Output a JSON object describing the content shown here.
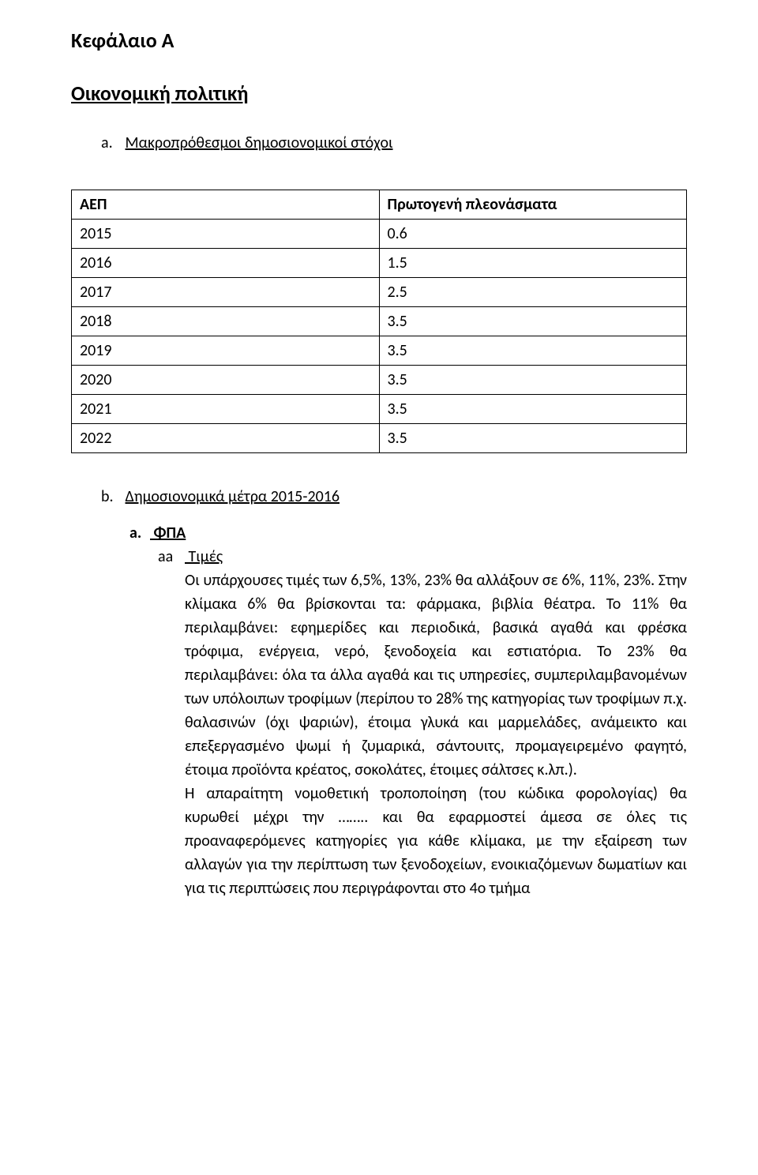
{
  "chapter_title": "Κεφάλαιο Α",
  "section_title": "Οικονομική πολιτική",
  "sub_a": {
    "letter": "a.",
    "label": "Μακροπρόθεσμοι δημοσιονομικοί στόχοι"
  },
  "table": {
    "header_col1": "ΑΕΠ",
    "header_col2": "Πρωτογενή πλεονάσματα",
    "rows": [
      {
        "c1": "2015",
        "c2": "0.6"
      },
      {
        "c1": "2016",
        "c2": "1.5"
      },
      {
        "c1": "2017",
        "c2": "2.5"
      },
      {
        "c1": "2018",
        "c2": "3.5"
      },
      {
        "c1": "2019",
        "c2": "3.5"
      },
      {
        "c1": "2020",
        "c2": "3.5"
      },
      {
        "c1": "2021",
        "c2": "3.5"
      },
      {
        "c1": "2022",
        "c2": "3.5"
      }
    ]
  },
  "sub_b": {
    "letter": "b.",
    "label": "Δημοσιονομικά μέτρα 2015-2016"
  },
  "fpa": {
    "letter": "a.",
    "label": " ΦΠΑ",
    "aa": "aa",
    "aa_label": " Τιμές",
    "paragraph": "Οι υπάρχουσες τιμές των 6,5%, 13%, 23% θα αλλάξουν σε 6%, 11%, 23%. Στην κλίμακα 6% θα βρίσκονται τα: φάρμακα, βιβλία θέατρα. Το 11% θα περιλαμβάνει: εφημερίδες και περιοδικά, βασικά αγαθά και φρέσκα τρόφιμα, ενέργεια, νερό, ξενοδοχεία και εστιατόρια. Το 23% θα περιλαμβάνει: όλα τα άλλα αγαθά και τις υπηρεσίες, συμπεριλαμβανομένων των υπόλοιπων τροφίμων (περίπου το 28% της κατηγορίας των τροφίμων π.χ. θαλασινών (όχι ψαριών), έτοιμα γλυκά και μαρμελάδες, ανάμεικτο και επεξεργασμένο ψωμί ή ζυμαρικά, σάντουιτς, προμαγειρεμένο φαγητό, έτοιμα προϊόντα κρέατος, σοκολάτες, έτοιμες σάλτσες κ.λπ.).",
    "paragraph2": "Η απαραίτητη νομοθετική τροποποίηση (του κώδικα φορολογίας) θα κυρωθεί μέχρι την …….. και θα εφαρμοστεί άμεσα σε όλες τις προαναφερόμενες κατηγορίες για κάθε κλίμακα, με την εξαίρεση των αλλαγών για την περίπτωση των ξενοδοχείων, ενοικιαζόμενων δωματίων και για τις περιπτώσεις που περιγράφονται στο 4ο τμήμα"
  }
}
